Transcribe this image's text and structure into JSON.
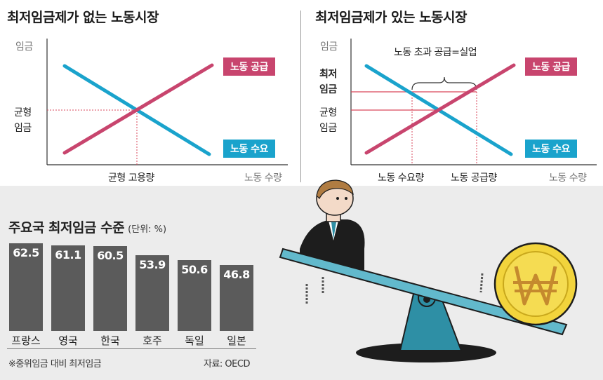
{
  "left_panel": {
    "title": "최저임금제가 없는 노동시장",
    "y_axis": "임금",
    "x_axis": "노동 수량",
    "eq_wage_label": [
      "균형",
      "임금"
    ],
    "eq_employment_label": "균형 고용량",
    "supply_label": "노동 공급",
    "demand_label": "노동 수요"
  },
  "right_panel": {
    "title": "최저임금제가 있는 노동시장",
    "y_axis": "임금",
    "x_axis": "노동 수량",
    "min_wage_label": [
      "최저",
      "임금"
    ],
    "eq_wage_label": [
      "균형",
      "임금"
    ],
    "excess_label": "노동 초과 공급=실업",
    "qd_label": "노동 수요량",
    "qs_label": "노동 공급량",
    "supply_label": "노동 공급",
    "demand_label": "노동 수요"
  },
  "colors": {
    "supply": "#c8456e",
    "demand": "#1aa3cc",
    "bar": "#5b5b5b",
    "coin": "#f2d43c",
    "seesaw": "#2e8fa5"
  },
  "chart_data": {
    "type": "bar",
    "title": "주요국 최저임금 수준",
    "unit": "(단위: %)",
    "categories": [
      "프랑스",
      "영국",
      "한국",
      "호주",
      "독일",
      "일본"
    ],
    "values": [
      62.5,
      61.1,
      60.5,
      53.9,
      50.6,
      46.8
    ],
    "value_labels": [
      "62.5",
      "61.1",
      "60.5",
      "53.9",
      "50.6",
      "46.8"
    ],
    "ylim": [
      0,
      70
    ],
    "note": "※중위임금 대비 최저임금",
    "source": "자료: OECD"
  },
  "illustration": {
    "coin_icon": "won-coin-icon",
    "person_icon": "businessman-icon",
    "seesaw_icon": "seesaw-icon"
  }
}
